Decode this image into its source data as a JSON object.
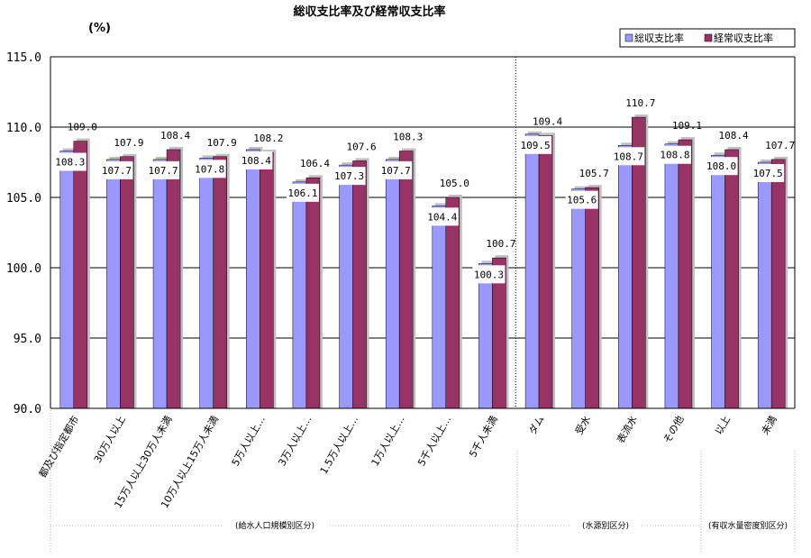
{
  "chart_data": {
    "type": "bar",
    "title": "総収支比率及び経常収支比率",
    "unit_label": "(%)",
    "ylim": [
      90,
      115
    ],
    "yticks": [
      "90.0",
      "95.0",
      "100.0",
      "105.0",
      "110.0",
      "115.0"
    ],
    "grid": true,
    "legend_position": "top-right",
    "categories": [
      "都及び指定都市",
      "30万人以上",
      "15万人以上30万人未満",
      "10万人以上15万人未満",
      "5万人以上…",
      "3万人以上…",
      "1.5万人以上…",
      "1万人以上…",
      "5千人以上…",
      "5千人未満",
      "ダム",
      "受水",
      "表流水",
      "その他",
      "以上",
      "未満"
    ],
    "series": [
      {
        "name": "総収支比率",
        "color": "#9999ff",
        "values": [
          108.3,
          107.7,
          107.7,
          107.8,
          108.4,
          106.1,
          107.3,
          107.7,
          104.4,
          100.3,
          109.5,
          105.6,
          108.7,
          108.8,
          108.0,
          107.5
        ]
      },
      {
        "name": "経常収支比率",
        "color": "#993366",
        "values": [
          109.0,
          107.9,
          108.4,
          107.9,
          108.2,
          106.4,
          107.6,
          108.3,
          105.0,
          100.7,
          109.4,
          105.7,
          110.7,
          109.1,
          108.4,
          107.7
        ]
      }
    ],
    "groups": [
      {
        "label": "(給水人口規模別区分)"
      },
      {
        "label": "(水源別区分)"
      },
      {
        "label": "(有収水量密度別区分)"
      }
    ]
  }
}
